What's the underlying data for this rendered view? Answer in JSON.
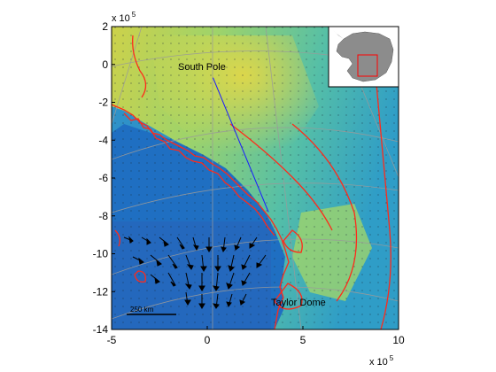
{
  "map": {
    "x_range": [
      -5,
      10
    ],
    "y_range": [
      -14,
      2
    ],
    "x_ticks": [
      "-5",
      "0",
      "5",
      "10"
    ],
    "y_ticks": [
      "2",
      "0",
      "-2",
      "-4",
      "-6",
      "-8",
      "-10",
      "-12",
      "-14"
    ],
    "x_ticks_values": [
      -5,
      0,
      5,
      10
    ],
    "y_ticks_values": [
      2,
      0,
      -2,
      -4,
      -6,
      -8,
      -10,
      -12,
      -14
    ],
    "x_multiplier_base": "x 10",
    "x_multiplier_exp": "5",
    "y_multiplier_base": "x 10",
    "y_multiplier_exp": "5",
    "labels": {
      "south_pole": "South Pole",
      "taylor_dome": "Taylor Dome",
      "scale_bar": "250 km"
    },
    "points": {
      "south_pole": {
        "x": 0.3,
        "y": -0.7
      },
      "taylor_dome": {
        "x": 3.4,
        "y": -12.8
      }
    },
    "transect": {
      "from": [
        0.3,
        -0.7
      ],
      "to": [
        3.2,
        -7.8
      ]
    },
    "colors": {
      "ocean": "#1f6fc2",
      "land_low": "#3fb5b0",
      "land_mid": "#8ccf6a",
      "land_high": "#d8d248",
      "coastline": "#ff2a1a",
      "transect": "#1a1aff",
      "graticule": "#9a9a9a",
      "arrows": "#000000",
      "inset_continent": "#8c8c8c",
      "inset_box": "#ff0000"
    }
  }
}
